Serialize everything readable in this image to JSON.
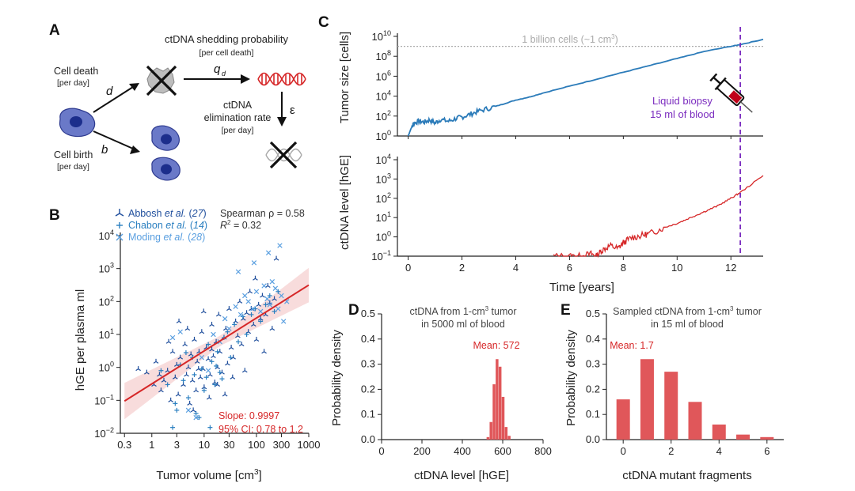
{
  "colors": {
    "abbosh": "#1f4e9c",
    "chabon": "#2a7fc0",
    "moding": "#5a9fe0",
    "tumor_line": "#2b7bb9",
    "red": "#d62728",
    "purple": "#7b2cbf",
    "gray": "#aaaaaa",
    "cell_fill": "#6a79c8",
    "nucleus": "#1c2e8c",
    "dna_red": "#d62728",
    "hist_red": "#e0575a"
  },
  "panelA": {
    "letter": "A",
    "shedding_title": "ctDNA shedding probability",
    "shedding_unit": "[per cell death]",
    "q_label": "q",
    "q_sub": "d",
    "death_title": "Cell death",
    "death_unit": "[per day]",
    "d_label": "d",
    "birth_title": "Cell birth",
    "birth_unit": "[per day]",
    "b_label": "b",
    "elim_line1": "ctDNA",
    "elim_line2": "elimination rate",
    "elim_unit": "[per day]",
    "eps_label": "ε",
    "icons": [
      "tumor-cell-icon",
      "dead-cell-icon",
      "dna-helix-icon",
      "degraded-dna-icon",
      "cross-icon"
    ]
  },
  "panelB": {
    "letter": "B",
    "xlabel": "Tumor volume [cm",
    "xlabel_sup": "3",
    "xlabel_end": "]",
    "ylabel": "hGE per plasma ml",
    "xticks": [
      "0.3",
      "1",
      "3",
      "10",
      "30",
      "100",
      "300",
      "1000"
    ],
    "xtick_vals": [
      0.3,
      1,
      3,
      10,
      30,
      100,
      300,
      1000
    ],
    "yticks": [
      {
        "base": "10",
        "exp": "−2",
        "val": -2
      },
      {
        "base": "10",
        "exp": "−1",
        "val": -1
      },
      {
        "base": "10",
        "exp": "0",
        "val": 0
      },
      {
        "base": "10",
        "exp": "1",
        "val": 1
      },
      {
        "base": "10",
        "exp": "2",
        "val": 2
      },
      {
        "base": "10",
        "exp": "3",
        "val": 3
      },
      {
        "base": "10",
        "exp": "4",
        "val": 4
      }
    ],
    "legend": [
      {
        "name": "Abbosh ",
        "etal": "et al.",
        "ref": " (",
        "num": "27",
        "end": ")",
        "marker": "tri"
      },
      {
        "name": "Chabon ",
        "etal": "et al.",
        "ref": " (",
        "num": "14",
        "end": ")",
        "marker": "plus"
      },
      {
        "name": "Moding ",
        "etal": "et al.",
        "ref": " (",
        "num": "28",
        "end": ")",
        "marker": "x"
      }
    ],
    "spearman": "Spearman ρ = 0.58",
    "r2_label": "R",
    "r2_sup": "2",
    "r2_value": " = 0.32",
    "slope_text": "Slope: 0.9997",
    "ci_text": "95% CI: 0.78 to 1.2"
  },
  "panelC": {
    "letter": "C",
    "top_ylabel": "Tumor size [cells]",
    "bottom_ylabel": "ctDNA level [hGE]",
    "xlabel": "Time [years]",
    "xticks": [
      "0",
      "2",
      "4",
      "6",
      "8",
      "10",
      "12"
    ],
    "threshold_label": "1 billion cells (~1 cm",
    "threshold_sup": "3",
    "threshold_end": ")",
    "biopsy_line1": "Liquid biopsy",
    "biopsy_line2": "15 ml of blood",
    "top_yticks": [
      {
        "base": "10",
        "exp": "0",
        "val": 0
      },
      {
        "base": "10",
        "exp": "2",
        "val": 2
      },
      {
        "base": "10",
        "exp": "4",
        "val": 4
      },
      {
        "base": "10",
        "exp": "6",
        "val": 6
      },
      {
        "base": "10",
        "exp": "8",
        "val": 8
      },
      {
        "base": "10",
        "exp": "10",
        "val": 10
      }
    ],
    "bottom_yticks": [
      {
        "base": "10",
        "exp": "−1",
        "val": -1
      },
      {
        "base": "10",
        "exp": "0",
        "val": 0
      },
      {
        "base": "10",
        "exp": "1",
        "val": 1
      },
      {
        "base": "10",
        "exp": "2",
        "val": 2
      },
      {
        "base": "10",
        "exp": "3",
        "val": 3
      },
      {
        "base": "10",
        "exp": "4",
        "val": 4
      }
    ],
    "icon": "syringe-icon"
  },
  "panelD": {
    "letter": "D",
    "title_line1_a": "ctDNA from 1-cm",
    "title_line1_sup": "3",
    "title_line1_b": " tumor",
    "title_line2": "in 5000 ml of blood",
    "mean_label": "Mean: 572",
    "xlabel": "ctDNA level [hGE]",
    "ylabel": "Probability density",
    "xticks": [
      "0",
      "200",
      "400",
      "600",
      "800"
    ],
    "yticks": [
      "0.0",
      "0.1",
      "0.2",
      "0.3",
      "0.4",
      "0.5"
    ]
  },
  "panelE": {
    "letter": "E",
    "title_line1_a": "Sampled ctDNA from 1-cm",
    "title_line1_sup": "3",
    "title_line1_b": " tumor",
    "title_line2": "in 15 ml of blood",
    "mean_label": "Mean: 1.7",
    "xlabel": "ctDNA mutant fragments",
    "ylabel": "Probability density",
    "xticks": [
      "0",
      "2",
      "4",
      "6"
    ],
    "yticks": [
      "0.0",
      "0.1",
      "0.2",
      "0.3",
      "0.4",
      "0.5"
    ]
  },
  "chart_data": [
    {
      "id": "B",
      "type": "scatter",
      "xscale": "log",
      "yscale": "log",
      "xlim": [
        0.25,
        1000
      ],
      "ylim": [
        0.01,
        10000
      ],
      "regression": {
        "slope": 0.9997,
        "intercept_log10": -0.5,
        "ci": [
          0.78,
          1.2
        ]
      },
      "series": [
        {
          "name": "Abbosh et al. (27)",
          "marker": "tri",
          "points": [
            [
              0.55,
              0.9
            ],
            [
              0.8,
              0.7
            ],
            [
              1.1,
              0.3
            ],
            [
              1.2,
              1.5
            ],
            [
              1.5,
              0.2
            ],
            [
              1.7,
              0.4
            ],
            [
              2,
              0.8
            ],
            [
              2.3,
              0.1
            ],
            [
              2.5,
              3
            ],
            [
              2.8,
              0.5
            ],
            [
              3.0,
              1.2
            ],
            [
              3.2,
              0.15
            ],
            [
              3.5,
              2
            ],
            [
              4,
              0.3
            ],
            [
              4.3,
              5
            ],
            [
              4.6,
              0.6
            ],
            [
              5,
              1.0
            ],
            [
              5.3,
              0.08
            ],
            [
              5.6,
              2.5
            ],
            [
              6,
              0.4
            ],
            [
              6.5,
              7
            ],
            [
              7,
              0.2
            ],
            [
              7.4,
              1.5
            ],
            [
              8,
              3
            ],
            [
              8.5,
              0.5
            ],
            [
              9,
              12
            ],
            [
              9.5,
              0.9
            ],
            [
              10,
              0.25
            ],
            [
              11,
              4
            ],
            [
              12,
              1.8
            ],
            [
              13,
              0.6
            ],
            [
              14,
              20
            ],
            [
              15,
              2.2
            ],
            [
              16,
              0.35
            ],
            [
              17,
              6
            ],
            [
              18,
              1
            ],
            [
              19,
              40
            ],
            [
              20,
              3
            ],
            [
              22,
              0.7
            ],
            [
              24,
              8
            ],
            [
              26,
              15
            ],
            [
              28,
              1.3
            ],
            [
              30,
              60
            ],
            [
              33,
              4
            ],
            [
              36,
              2
            ],
            [
              40,
              25
            ],
            [
              44,
              9
            ],
            [
              48,
              100
            ],
            [
              52,
              5
            ],
            [
              56,
              30
            ],
            [
              60,
              0.8
            ],
            [
              65,
              45
            ],
            [
              70,
              12
            ],
            [
              75,
              200
            ],
            [
              80,
              60
            ],
            [
              88,
              20
            ],
            [
              95,
              500
            ],
            [
              100,
              7
            ],
            [
              110,
              80
            ],
            [
              120,
              30
            ],
            [
              130,
              150
            ],
            [
              140,
              3
            ],
            [
              150,
              40
            ],
            [
              165,
              300
            ],
            [
              180,
              90
            ],
            [
              200,
              15
            ],
            [
              220,
              120
            ],
            [
              240,
              2000
            ],
            [
              3.3,
              25
            ],
            [
              6.2,
              0.05
            ],
            [
              12.5,
              0.12
            ],
            [
              2.1,
              6
            ],
            [
              18,
              0.3
            ],
            [
              25,
              0.15
            ],
            [
              1.4,
              0.6
            ],
            [
              4.8,
              15
            ],
            [
              9.8,
              50
            ],
            [
              35,
              0.5
            ],
            [
              14,
              3.5
            ],
            [
              7.8,
              0.9
            ]
          ]
        },
        {
          "name": "Chabon et al. (14)",
          "marker": "plus",
          "points": [
            [
              1.5,
              0.8
            ],
            [
              2,
              0.3
            ],
            [
              2.5,
              0.015
            ],
            [
              3,
              0.05
            ],
            [
              3.5,
              1.2
            ],
            [
              4,
              0.4
            ],
            [
              5,
              0.12
            ],
            [
              6,
              2
            ],
            [
              7,
              0.04
            ],
            [
              8,
              0.03
            ],
            [
              9,
              0.9
            ],
            [
              10,
              0.2
            ],
            [
              11,
              0.5
            ],
            [
              12,
              5
            ],
            [
              14,
              1.5
            ],
            [
              16,
              0.3
            ],
            [
              18,
              3
            ],
            [
              20,
              0.7
            ],
            [
              24,
              8
            ],
            [
              28,
              12
            ],
            [
              32,
              2
            ],
            [
              38,
              20
            ],
            [
              45,
              6
            ],
            [
              55,
              35
            ],
            [
              65,
              10
            ],
            [
              80,
              40
            ],
            [
              95,
              60
            ],
            [
              120,
              25
            ],
            [
              150,
              80
            ],
            [
              180,
              150
            ],
            [
              220,
              50
            ],
            [
              260,
              200
            ],
            [
              2.8,
              0.08
            ],
            [
              4.5,
              2.8
            ],
            [
              6.5,
              0.6
            ],
            [
              13,
              0.015
            ],
            [
              17,
              1.1
            ],
            [
              22,
              0.45
            ]
          ]
        },
        {
          "name": "Moding et al. (28)",
          "marker": "x",
          "points": [
            [
              2.5,
              8
            ],
            [
              3.5,
              12
            ],
            [
              5,
              0.05
            ],
            [
              7,
              0.03
            ],
            [
              9,
              2
            ],
            [
              12,
              0.8
            ],
            [
              15,
              10
            ],
            [
              20,
              6
            ],
            [
              25,
              30
            ],
            [
              30,
              15
            ],
            [
              40,
              70
            ],
            [
              50,
              40
            ],
            [
              60,
              150
            ],
            [
              70,
              100
            ],
            [
              85,
              60
            ],
            [
              100,
              200
            ],
            [
              120,
              50
            ],
            [
              140,
              300
            ],
            [
              160,
              120
            ],
            [
              180,
              80
            ],
            [
              200,
              400
            ],
            [
              230,
              250
            ],
            [
              260,
              60
            ],
            [
              300,
              150
            ],
            [
              330,
              25
            ],
            [
              380,
              100
            ],
            [
              280,
              5000
            ],
            [
              170,
              3000
            ],
            [
              45,
              800
            ],
            [
              90,
              1500
            ]
          ]
        }
      ]
    },
    {
      "id": "C-top",
      "type": "line",
      "yscale": "log",
      "xlabel": "Time [years]",
      "ylabel": "Tumor size [cells]",
      "xlim": [
        -0.4,
        13.2
      ],
      "ylim": [
        1,
        10000000000
      ],
      "threshold_cells": 1000000000,
      "biopsy_time": 12.35,
      "points": [
        [
          0,
          1
        ],
        [
          0.1,
          5
        ],
        [
          0.2,
          20
        ],
        [
          0.4,
          30
        ],
        [
          0.6,
          25
        ],
        [
          0.8,
          40
        ],
        [
          1.0,
          20
        ],
        [
          1.2,
          45
        ],
        [
          1.5,
          30
        ],
        [
          1.8,
          60
        ],
        [
          2.0,
          80
        ],
        [
          2.3,
          150
        ],
        [
          2.6,
          300
        ],
        [
          3.0,
          600
        ],
        [
          3.5,
          1500
        ],
        [
          4.0,
          4000
        ],
        [
          4.5,
          8000
        ],
        [
          5,
          20000
        ],
        [
          6,
          100000
        ],
        [
          7,
          500000
        ],
        [
          8,
          2500000
        ],
        [
          9,
          12000000
        ],
        [
          10,
          60000000
        ],
        [
          11,
          300000000
        ],
        [
          12,
          1000000000
        ],
        [
          12.35,
          1500000000
        ],
        [
          13.2,
          5000000000
        ]
      ]
    },
    {
      "id": "C-bottom",
      "type": "line",
      "yscale": "log",
      "xlabel": "Time [years]",
      "ylabel": "ctDNA level [hGE]",
      "xlim": [
        -0.4,
        13.2
      ],
      "ylim": [
        0.1,
        10000
      ],
      "points": [
        [
          5.4,
          0.1
        ],
        [
          6.0,
          0.1
        ],
        [
          6.4,
          0.1
        ],
        [
          6.8,
          0.13
        ],
        [
          7.0,
          0.1
        ],
        [
          7.2,
          0.2
        ],
        [
          7.5,
          0.35
        ],
        [
          7.8,
          0.25
        ],
        [
          8.0,
          0.5
        ],
        [
          8.3,
          0.9
        ],
        [
          8.7,
          1.2
        ],
        [
          9,
          1.5
        ],
        [
          9.5,
          3
        ],
        [
          10,
          5
        ],
        [
          10.5,
          10
        ],
        [
          11,
          20
        ],
        [
          11.5,
          40
        ],
        [
          12,
          100
        ],
        [
          12.35,
          200
        ],
        [
          13.2,
          1500
        ]
      ]
    },
    {
      "id": "D",
      "type": "bar",
      "xlabel": "ctDNA level [hGE]",
      "ylabel": "Probability density",
      "xlim": [
        0,
        800
      ],
      "ylim": [
        0,
        0.5
      ],
      "mean": 572,
      "x": [
        527,
        542,
        557,
        572,
        587,
        602,
        617,
        632
      ],
      "values": [
        0.01,
        0.07,
        0.22,
        0.32,
        0.29,
        0.17,
        0.05,
        0.015
      ]
    },
    {
      "id": "E",
      "type": "bar",
      "xlabel": "ctDNA mutant fragments",
      "ylabel": "Probability density",
      "xlim": [
        -0.7,
        6.7
      ],
      "ylim": [
        0,
        0.5
      ],
      "mean": 1.7,
      "categories": [
        0,
        1,
        2,
        3,
        4,
        5,
        6
      ],
      "values": [
        0.16,
        0.32,
        0.27,
        0.15,
        0.06,
        0.02,
        0.01
      ]
    }
  ]
}
